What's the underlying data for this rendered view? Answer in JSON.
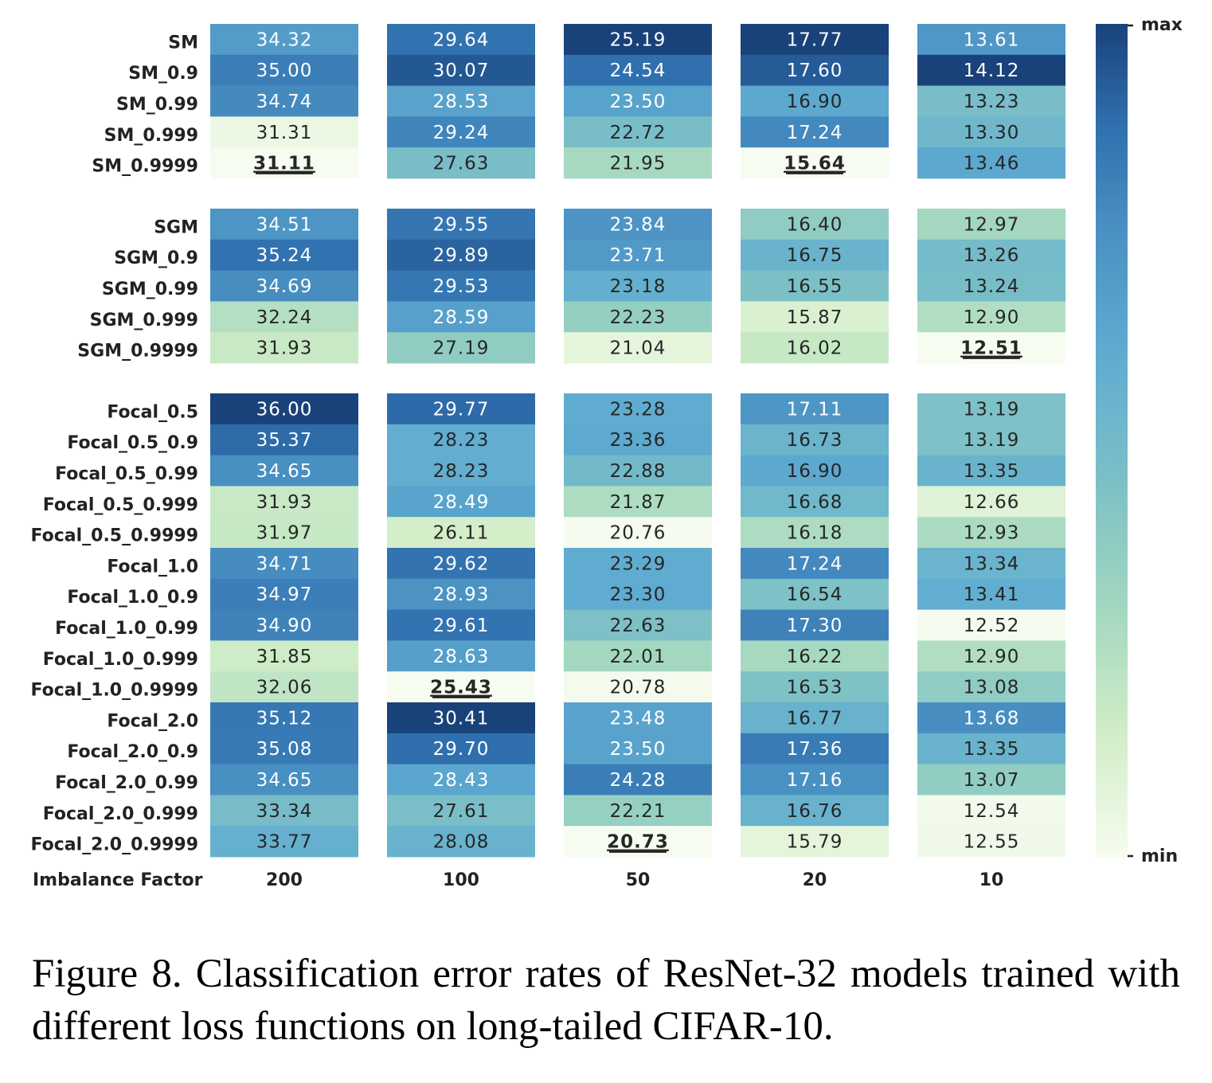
{
  "chart_data": {
    "type": "heatmap",
    "xlabel": "Imbalance Factor",
    "x_categories": [
      "200",
      "100",
      "50",
      "20",
      "10"
    ],
    "groups": [
      {
        "rows": [
          "SM",
          "SM_0.9",
          "SM_0.99",
          "SM_0.999",
          "SM_0.9999"
        ],
        "values": [
          [
            34.32,
            29.64,
            25.19,
            17.77,
            13.61
          ],
          [
            35.0,
            30.07,
            24.54,
            17.6,
            14.12
          ],
          [
            34.74,
            28.53,
            23.5,
            16.9,
            13.23
          ],
          [
            31.31,
            29.24,
            22.72,
            17.24,
            13.3
          ],
          [
            31.11,
            27.63,
            21.95,
            15.64,
            13.46
          ]
        ]
      },
      {
        "rows": [
          "SGM",
          "SGM_0.9",
          "SGM_0.99",
          "SGM_0.999",
          "SGM_0.9999"
        ],
        "values": [
          [
            34.51,
            29.55,
            23.84,
            16.4,
            12.97
          ],
          [
            35.24,
            29.89,
            23.71,
            16.75,
            13.26
          ],
          [
            34.69,
            29.53,
            23.18,
            16.55,
            13.24
          ],
          [
            32.24,
            28.59,
            22.23,
            15.87,
            12.9
          ],
          [
            31.93,
            27.19,
            21.04,
            16.02,
            12.51
          ]
        ]
      },
      {
        "rows": [
          "Focal_0.5",
          "Focal_0.5_0.9",
          "Focal_0.5_0.99",
          "Focal_0.5_0.999",
          "Focal_0.5_0.9999",
          "Focal_1.0",
          "Focal_1.0_0.9",
          "Focal_1.0_0.99",
          "Focal_1.0_0.999",
          "Focal_1.0_0.9999",
          "Focal_2.0",
          "Focal_2.0_0.9",
          "Focal_2.0_0.99",
          "Focal_2.0_0.999",
          "Focal_2.0_0.9999"
        ],
        "values": [
          [
            36.0,
            29.77,
            23.28,
            17.11,
            13.19
          ],
          [
            35.37,
            28.23,
            23.36,
            16.73,
            13.19
          ],
          [
            34.65,
            28.23,
            22.88,
            16.9,
            13.35
          ],
          [
            31.93,
            28.49,
            21.87,
            16.68,
            12.66
          ],
          [
            31.97,
            26.11,
            20.76,
            16.18,
            12.93
          ],
          [
            34.71,
            29.62,
            23.29,
            17.24,
            13.34
          ],
          [
            34.97,
            28.93,
            23.3,
            16.54,
            13.41
          ],
          [
            34.9,
            29.61,
            22.63,
            17.3,
            12.52
          ],
          [
            31.85,
            28.63,
            22.01,
            16.22,
            12.9
          ],
          [
            32.06,
            25.43,
            20.78,
            16.53,
            13.08
          ],
          [
            35.12,
            30.41,
            23.48,
            16.77,
            13.68
          ],
          [
            35.08,
            29.7,
            23.5,
            17.36,
            13.35
          ],
          [
            34.65,
            28.43,
            24.28,
            17.16,
            13.07
          ],
          [
            33.34,
            27.61,
            22.21,
            16.76,
            12.54
          ],
          [
            33.77,
            28.08,
            20.73,
            15.79,
            12.55
          ]
        ]
      }
    ],
    "colorbar": {
      "max_label": "max",
      "min_label": "min"
    },
    "colors": [
      "#f7fcf0",
      "#d1edc7",
      "#a3d7c0",
      "#7cc0c6",
      "#60acd1",
      "#4a91c3",
      "#2f6fae",
      "#19427a"
    ],
    "normalization": "per column (min to max within each imbalance factor)",
    "underlined_best": "minimum error in each column is bold and underlined"
  },
  "caption": "Figure 8. Classification error rates of ResNet-32 models trained with different loss functions on long-tailed CIFAR-10."
}
